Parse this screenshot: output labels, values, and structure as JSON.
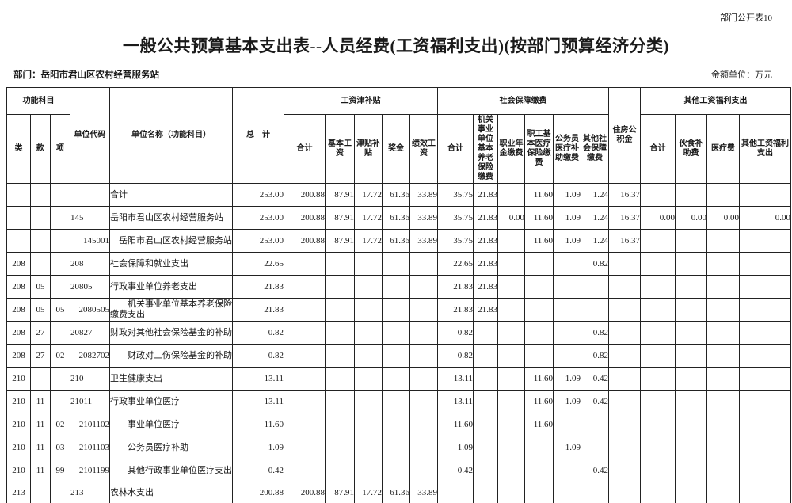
{
  "page": {
    "doc_label": "部门公开表10",
    "title": "一般公共预算基本支出表--人员经费(工资福利支出)(按部门预算经济分类)",
    "department_label": "部门：岳阳市君山区农村经营服务站",
    "unit_label": "金额单位：万元"
  },
  "table": {
    "header": {
      "function_group": "功能科目",
      "lei": "类",
      "kuan": "款",
      "xiang": "项",
      "unit_code": "单位代码",
      "unit_name": "单位名称（功能科目）",
      "grand_total": "总　计",
      "salary_group": "工资津补贴",
      "salary_cols": [
        "合计",
        "基本工资",
        "津贴补贴",
        "奖金",
        "绩效工资"
      ],
      "social_group": "社会保障缴费",
      "social_cols": [
        "合计",
        "机关事业单位基本养老保险缴费",
        "职业年金缴费",
        "职工基本医疗保险缴费",
        "公务员医疗补助缴费",
        "其他社会保障缴费"
      ],
      "housing_fund": "住房公积金",
      "other_group": "其他工资福利支出",
      "other_cols": [
        "合计",
        "伙食补助费",
        "医疗费",
        "其他工资福利支出"
      ]
    },
    "rows": [
      {
        "lei": "",
        "kuan": "",
        "xiang": "",
        "code": "",
        "name": "合计",
        "indent": 0,
        "values": [
          "253.00",
          "200.88",
          "87.91",
          "17.72",
          "61.36",
          "33.89",
          "35.75",
          "21.83",
          "",
          "11.60",
          "1.09",
          "1.24",
          "16.37",
          "",
          "",
          "",
          ""
        ]
      },
      {
        "lei": "",
        "kuan": "",
        "xiang": "",
        "code": "145",
        "name": "岳阳市君山区农村经营服务站",
        "indent": 0,
        "values": [
          "253.00",
          "200.88",
          "87.91",
          "17.72",
          "61.36",
          "33.89",
          "35.75",
          "21.83",
          "0.00",
          "11.60",
          "1.09",
          "1.24",
          "16.37",
          "0.00",
          "0.00",
          "0.00",
          "0.00"
        ]
      },
      {
        "lei": "",
        "kuan": "",
        "xiang": "",
        "code": "145001",
        "name": "岳阳市君山区农村经营服务站",
        "indent": 1,
        "values": [
          "253.00",
          "200.88",
          "87.91",
          "17.72",
          "61.36",
          "33.89",
          "35.75",
          "21.83",
          "",
          "11.60",
          "1.09",
          "1.24",
          "16.37",
          "",
          "",
          "",
          ""
        ]
      },
      {
        "lei": "208",
        "kuan": "",
        "xiang": "",
        "code": "208",
        "name": "社会保障和就业支出",
        "indent": 0,
        "values": [
          "22.65",
          "",
          "",
          "",
          "",
          "",
          "22.65",
          "21.83",
          "",
          "",
          "",
          "0.82",
          "",
          "",
          "",
          "",
          ""
        ]
      },
      {
        "lei": "208",
        "kuan": "05",
        "xiang": "",
        "code": "20805",
        "name": "行政事业单位养老支出",
        "indent": 0,
        "values": [
          "21.83",
          "",
          "",
          "",
          "",
          "",
          "21.83",
          "21.83",
          "",
          "",
          "",
          "",
          "",
          "",
          "",
          "",
          ""
        ]
      },
      {
        "lei": "208",
        "kuan": "05",
        "xiang": "05",
        "code": "2080505",
        "name": "机关事业单位基本养老保险缴费支出",
        "indent": 2,
        "values": [
          "21.83",
          "",
          "",
          "",
          "",
          "",
          "21.83",
          "21.83",
          "",
          "",
          "",
          "",
          "",
          "",
          "",
          "",
          ""
        ]
      },
      {
        "lei": "208",
        "kuan": "27",
        "xiang": "",
        "code": "20827",
        "name": "财政对其他社会保险基金的补助",
        "indent": 0,
        "values": [
          "0.82",
          "",
          "",
          "",
          "",
          "",
          "0.82",
          "",
          "",
          "",
          "",
          "0.82",
          "",
          "",
          "",
          "",
          ""
        ]
      },
      {
        "lei": "208",
        "kuan": "27",
        "xiang": "02",
        "code": "2082702",
        "name": "财政对工伤保险基金的补助",
        "indent": 2,
        "values": [
          "0.82",
          "",
          "",
          "",
          "",
          "",
          "0.82",
          "",
          "",
          "",
          "",
          "0.82",
          "",
          "",
          "",
          "",
          ""
        ]
      },
      {
        "lei": "210",
        "kuan": "",
        "xiang": "",
        "code": "210",
        "name": "卫生健康支出",
        "indent": 0,
        "values": [
          "13.11",
          "",
          "",
          "",
          "",
          "",
          "13.11",
          "",
          "",
          "11.60",
          "1.09",
          "0.42",
          "",
          "",
          "",
          "",
          ""
        ]
      },
      {
        "lei": "210",
        "kuan": "11",
        "xiang": "",
        "code": "21011",
        "name": "行政事业单位医疗",
        "indent": 0,
        "values": [
          "13.11",
          "",
          "",
          "",
          "",
          "",
          "13.11",
          "",
          "",
          "11.60",
          "1.09",
          "0.42",
          "",
          "",
          "",
          "",
          ""
        ]
      },
      {
        "lei": "210",
        "kuan": "11",
        "xiang": "02",
        "code": "2101102",
        "name": "事业单位医疗",
        "indent": 2,
        "values": [
          "11.60",
          "",
          "",
          "",
          "",
          "",
          "11.60",
          "",
          "",
          "11.60",
          "",
          "",
          "",
          "",
          "",
          "",
          ""
        ]
      },
      {
        "lei": "210",
        "kuan": "11",
        "xiang": "03",
        "code": "2101103",
        "name": "公务员医疗补助",
        "indent": 2,
        "values": [
          "1.09",
          "",
          "",
          "",
          "",
          "",
          "1.09",
          "",
          "",
          "",
          "1.09",
          "",
          "",
          "",
          "",
          "",
          ""
        ]
      },
      {
        "lei": "210",
        "kuan": "11",
        "xiang": "99",
        "code": "2101199",
        "name": "其他行政事业单位医疗支出",
        "indent": 2,
        "values": [
          "0.42",
          "",
          "",
          "",
          "",
          "",
          "0.42",
          "",
          "",
          "",
          "",
          "0.42",
          "",
          "",
          "",
          "",
          ""
        ]
      },
      {
        "lei": "213",
        "kuan": "",
        "xiang": "",
        "code": "213",
        "name": "农林水支出",
        "indent": 0,
        "values": [
          "200.88",
          "200.88",
          "87.91",
          "17.72",
          "61.36",
          "33.89",
          "",
          "",
          "",
          "",
          "",
          "",
          "",
          "",
          "",
          "",
          ""
        ]
      }
    ]
  }
}
